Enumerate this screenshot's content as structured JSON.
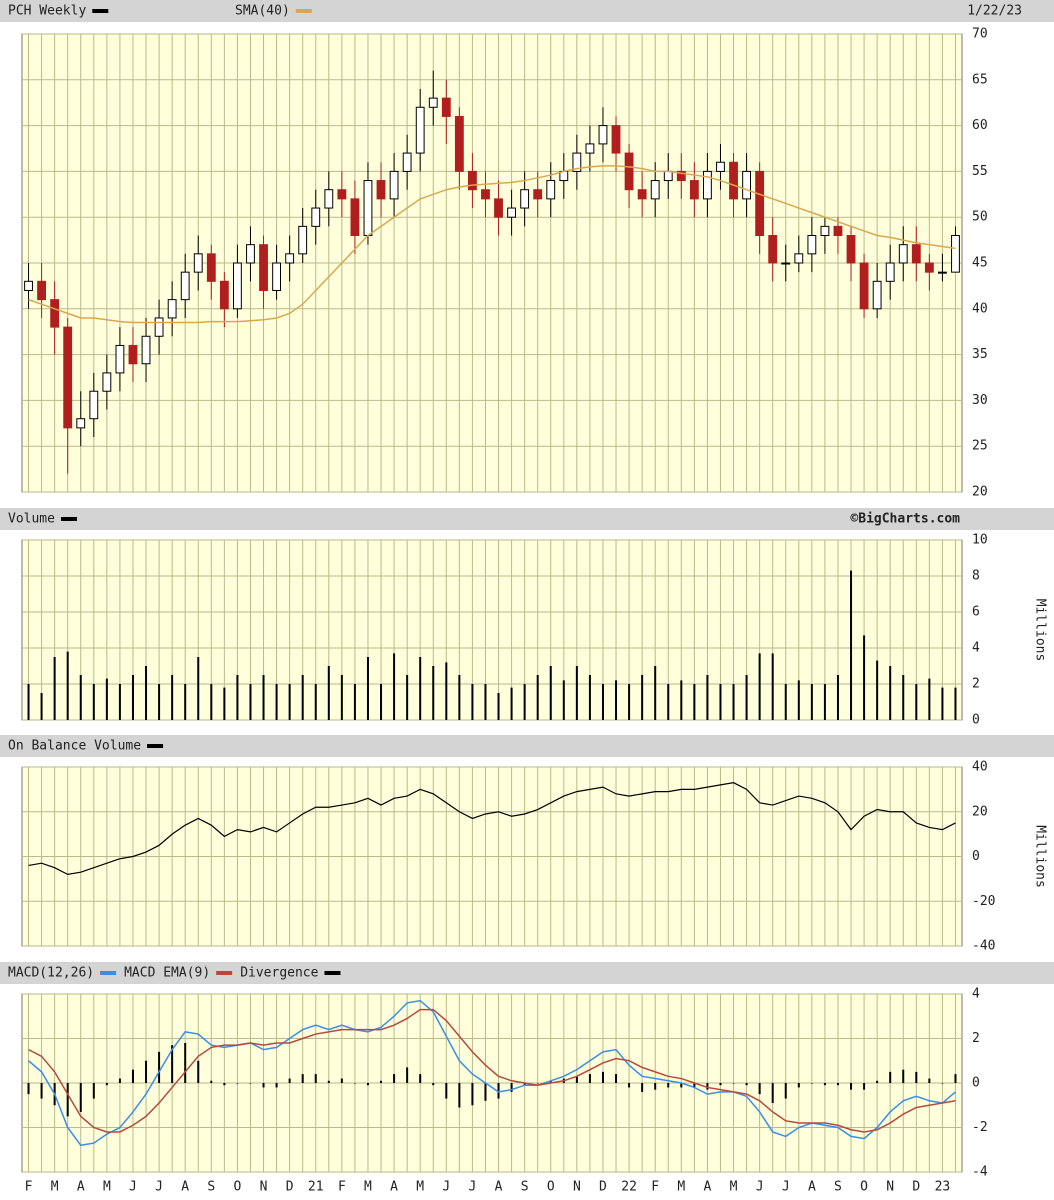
{
  "header": {
    "date": "1/22/23",
    "watermark": "©BigCharts.com"
  },
  "chart_data": [
    {
      "type": "candlestick",
      "title": "PCH Weekly",
      "up_color": "#000000",
      "down_color": "#b01e1e",
      "categories": [
        "F",
        null,
        "M",
        null,
        "A",
        null,
        "M",
        null,
        "J",
        null,
        "J",
        null,
        "A",
        null,
        "S",
        null,
        "O",
        null,
        "N",
        null,
        "D",
        null,
        "21",
        null,
        "F",
        null,
        "M",
        null,
        "A",
        null,
        "M",
        null,
        "J",
        null,
        "J",
        null,
        "A",
        null,
        "S",
        null,
        "O",
        null,
        "N",
        null,
        "D",
        null,
        "22",
        null,
        "F",
        null,
        "M",
        null,
        "A",
        null,
        "M",
        null,
        "J",
        null,
        "J",
        null,
        "A",
        null,
        "S",
        null,
        "O",
        null,
        "N",
        null,
        "D",
        null,
        "23",
        null
      ],
      "open": [
        42,
        43,
        41,
        38,
        27,
        28,
        31,
        33,
        36,
        34,
        37,
        39,
        41,
        44,
        46,
        43,
        40,
        45,
        47,
        42,
        45,
        46,
        49,
        51,
        53,
        52,
        48,
        54,
        52,
        55,
        57,
        62,
        63,
        61,
        55,
        53,
        52,
        50,
        51,
        53,
        52,
        54,
        55,
        57,
        58,
        60,
        57,
        53,
        52,
        54,
        55,
        54,
        52,
        55,
        56,
        52,
        55,
        48,
        45,
        45,
        46,
        48,
        49,
        48,
        45,
        40,
        43,
        45,
        47,
        45,
        44,
        44
      ],
      "high": [
        45,
        45,
        43,
        39,
        31,
        33,
        35,
        38,
        38,
        39,
        41,
        43,
        46,
        48,
        47,
        44,
        47,
        49,
        48,
        47,
        48,
        51,
        53,
        55,
        55,
        54,
        56,
        56,
        57,
        59,
        64,
        66,
        65,
        62,
        57,
        55,
        54,
        53,
        55,
        55,
        56,
        57,
        59,
        60,
        62,
        61,
        58,
        55,
        56,
        57,
        57,
        56,
        57,
        58,
        57,
        57,
        56,
        50,
        47,
        48,
        50,
        50,
        50,
        49,
        46,
        45,
        47,
        49,
        49,
        46,
        46,
        49
      ],
      "low": [
        40,
        39,
        35,
        22,
        25,
        26,
        29,
        31,
        32,
        32,
        35,
        37,
        39,
        42,
        41,
        38,
        39,
        43,
        40,
        41,
        43,
        45,
        47,
        49,
        50,
        46,
        47,
        50,
        50,
        53,
        55,
        60,
        58,
        53,
        51,
        50,
        48,
        48,
        49,
        50,
        50,
        52,
        53,
        55,
        56,
        55,
        51,
        50,
        50,
        52,
        52,
        50,
        50,
        53,
        50,
        50,
        46,
        43,
        43,
        44,
        44,
        46,
        46,
        43,
        39,
        39,
        41,
        43,
        43,
        42,
        43,
        44
      ],
      "close": [
        43,
        41,
        38,
        27,
        28,
        31,
        33,
        36,
        34,
        37,
        39,
        41,
        44,
        46,
        43,
        40,
        45,
        47,
        42,
        45,
        46,
        49,
        51,
        53,
        52,
        48,
        54,
        52,
        55,
        57,
        62,
        63,
        61,
        55,
        53,
        52,
        50,
        51,
        53,
        52,
        54,
        55,
        57,
        58,
        60,
        57,
        53,
        52,
        54,
        55,
        54,
        52,
        55,
        56,
        52,
        55,
        48,
        45,
        45,
        46,
        48,
        49,
        48,
        45,
        40,
        43,
        45,
        47,
        45,
        44,
        44,
        48
      ],
      "series": [
        {
          "name": "SMA(40)",
          "color": "#d9a84e",
          "values": [
            41,
            40.5,
            40,
            39.5,
            39,
            39,
            38.8,
            38.6,
            38.5,
            38.5,
            38.5,
            38.5,
            38.5,
            38.5,
            38.6,
            38.6,
            38.6,
            38.7,
            38.8,
            39,
            39.5,
            40.5,
            42,
            43.5,
            45,
            46.5,
            48,
            49,
            50,
            51,
            52,
            52.5,
            53,
            53.3,
            53.5,
            53.6,
            53.7,
            53.8,
            54,
            54.3,
            54.6,
            55,
            55.3,
            55.5,
            55.6,
            55.6,
            55.5,
            55.3,
            55,
            55,
            54.8,
            54.6,
            54.4,
            54,
            53.5,
            53,
            52.5,
            52,
            51.5,
            51,
            50.5,
            50,
            49.5,
            49,
            48.5,
            48,
            47.8,
            47.5,
            47.2,
            47,
            46.8,
            46.6
          ]
        }
      ],
      "ylim": [
        20,
        70
      ],
      "yticks": [
        20,
        25,
        30,
        35,
        40,
        45,
        50,
        55,
        60,
        65,
        70
      ],
      "grid": true
    },
    {
      "type": "bar",
      "title": "Volume",
      "y_label": "Millions",
      "color": "#000000",
      "values": [
        2,
        1.5,
        3.5,
        3.8,
        2.5,
        2,
        2.3,
        2,
        2.5,
        3,
        2,
        2.5,
        2,
        3.5,
        2,
        1.8,
        2.5,
        2,
        2.5,
        2,
        2,
        2.5,
        2,
        3,
        2.5,
        2,
        3.5,
        2,
        3.7,
        2.5,
        3.5,
        3,
        3.2,
        2.5,
        2,
        2,
        1.5,
        1.8,
        2,
        2.5,
        3,
        2.2,
        3,
        2.5,
        2,
        2.2,
        2,
        2.5,
        3,
        2,
        2.2,
        2,
        2.5,
        2,
        2,
        2.5,
        3.7,
        3.7,
        2,
        2.2,
        2,
        2,
        2.5,
        8.3,
        4.7,
        3.3,
        3,
        2.5,
        2,
        2.3,
        1.8,
        1.8
      ],
      "ylim": [
        0,
        10
      ],
      "yticks": [
        0,
        2,
        4,
        6,
        8,
        10
      ],
      "grid": true
    },
    {
      "type": "line",
      "title": "On Balance Volume",
      "y_label": "Millions",
      "color": "#000000",
      "values": [
        -4,
        -3,
        -5,
        -8,
        -7,
        -5,
        -3,
        -1,
        0,
        2,
        5,
        10,
        14,
        17,
        14,
        9,
        12,
        11,
        13,
        11,
        15,
        19,
        22,
        22,
        23,
        24,
        26,
        23,
        26,
        27,
        30,
        28,
        24,
        20,
        17,
        19,
        20,
        18,
        19,
        21,
        24,
        27,
        29,
        30,
        31,
        28,
        27,
        28,
        29,
        29,
        30,
        30,
        31,
        32,
        33,
        30,
        24,
        23,
        25,
        27,
        26,
        24,
        20,
        12,
        18,
        21,
        20,
        20,
        15,
        13,
        12,
        15
      ],
      "ylim": [
        -40,
        40
      ],
      "yticks": [
        -40,
        -20,
        0,
        20,
        40
      ],
      "grid": true
    },
    {
      "type": "macd",
      "ylim": [
        -4,
        4
      ],
      "yticks": [
        -4,
        -2,
        0,
        2,
        4
      ],
      "grid": true,
      "series": [
        {
          "name": "MACD(12,26)",
          "color": "#3a8ee6",
          "kind": "line",
          "values": [
            1,
            0.5,
            -0.5,
            -2,
            -2.8,
            -2.7,
            -2.3,
            -2,
            -1.3,
            -0.5,
            0.5,
            1.5,
            2.3,
            2.2,
            1.7,
            1.6,
            1.7,
            1.8,
            1.5,
            1.6,
            2,
            2.4,
            2.6,
            2.4,
            2.6,
            2.4,
            2.3,
            2.5,
            3,
            3.6,
            3.7,
            3.2,
            2.1,
            1,
            0.4,
            0,
            -0.4,
            -0.3,
            -0.1,
            -0.1,
            0.1,
            0.3,
            0.6,
            1,
            1.4,
            1.5,
            0.8,
            0.3,
            0.2,
            0.1,
            0,
            -0.2,
            -0.5,
            -0.4,
            -0.4,
            -0.6,
            -1.3,
            -2.2,
            -2.4,
            -2,
            -1.8,
            -1.9,
            -2,
            -2.4,
            -2.5,
            -2,
            -1.3,
            -0.8,
            -0.6,
            -0.8,
            -0.9,
            -0.4
          ]
        },
        {
          "name": "MACD EMA(9)",
          "color": "#b54a3c",
          "kind": "line",
          "values": [
            1.5,
            1.2,
            0.5,
            -0.5,
            -1.5,
            -2,
            -2.2,
            -2.2,
            -1.9,
            -1.5,
            -0.9,
            -0.2,
            0.5,
            1.2,
            1.6,
            1.7,
            1.7,
            1.8,
            1.7,
            1.8,
            1.8,
            2,
            2.2,
            2.3,
            2.4,
            2.4,
            2.4,
            2.4,
            2.6,
            2.9,
            3.3,
            3.3,
            2.8,
            2.1,
            1.4,
            0.8,
            0.3,
            0.1,
            0,
            -0.1,
            0,
            0.1,
            0.3,
            0.6,
            0.9,
            1.1,
            1,
            0.7,
            0.5,
            0.3,
            0.2,
            0,
            -0.2,
            -0.3,
            -0.4,
            -0.5,
            -0.8,
            -1.3,
            -1.7,
            -1.8,
            -1.8,
            -1.8,
            -1.9,
            -2.1,
            -2.2,
            -2.1,
            -1.8,
            -1.4,
            -1.1,
            -1,
            -0.9,
            -0.8
          ]
        },
        {
          "name": "Divergence",
          "color": "#000000",
          "kind": "bar",
          "values": [
            -0.5,
            -0.7,
            -1,
            -1.5,
            -1.3,
            -0.7,
            -0.1,
            0.2,
            0.6,
            1,
            1.4,
            1.7,
            1.8,
            1,
            0.1,
            -0.1,
            0,
            0,
            -0.2,
            -0.2,
            0.2,
            0.4,
            0.4,
            0.1,
            0.2,
            0,
            -0.1,
            0.1,
            0.4,
            0.7,
            0.4,
            -0.1,
            -0.7,
            -1.1,
            -1,
            -0.8,
            -0.7,
            -0.4,
            -0.1,
            0,
            0.1,
            0.2,
            0.3,
            0.4,
            0.5,
            0.4,
            -0.2,
            -0.4,
            -0.3,
            -0.2,
            -0.2,
            -0.2,
            -0.3,
            -0.1,
            0,
            -0.1,
            -0.5,
            -0.9,
            -0.7,
            -0.2,
            0,
            -0.1,
            -0.1,
            -0.3,
            -0.3,
            0.1,
            0.5,
            0.6,
            0.5,
            0.2,
            0,
            0.4
          ]
        }
      ]
    }
  ]
}
